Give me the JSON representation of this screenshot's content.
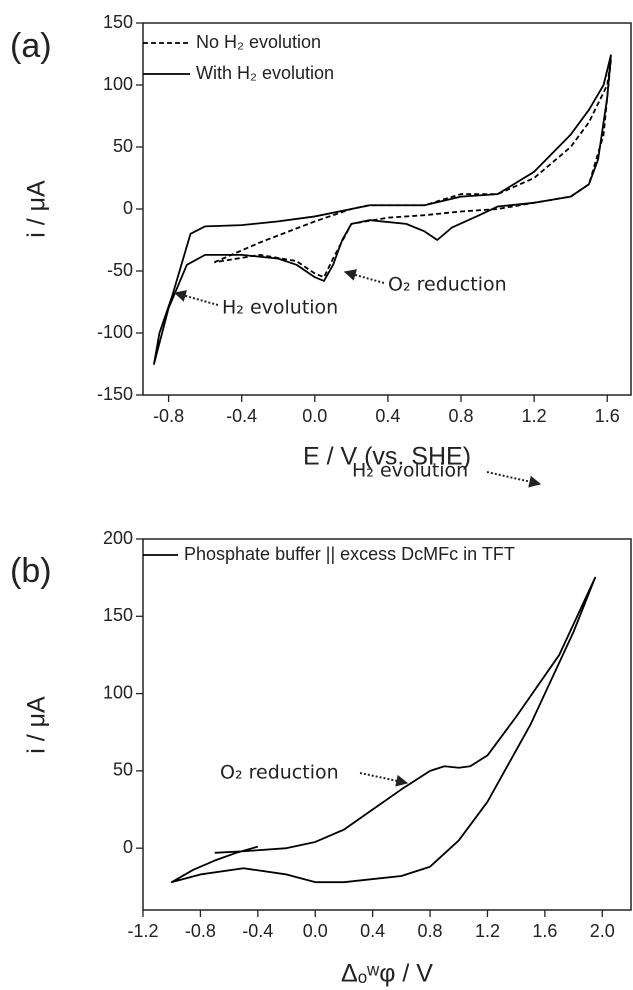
{
  "chart_data": [
    {
      "type": "line",
      "panel_label": "(a)",
      "xlabel": "E / V (vs. SHE)",
      "ylabel": "i / μA",
      "xlim": [
        -0.94,
        1.73
      ],
      "ylim": [
        -150,
        150
      ],
      "xticks": [
        -0.8,
        -0.4,
        {
          "value": 0,
          "label": "0.0"
        },
        0.4,
        0.8,
        1.2,
        1.6
      ],
      "yticks": [
        -150,
        -100,
        -50,
        0,
        50,
        100,
        150
      ],
      "series": [
        {
          "name": "No H₂ evolution",
          "color": "#000000",
          "dash": true,
          "x": [
            -0.55,
            -0.3,
            0.0,
            0.2,
            0.3,
            0.6,
            0.8,
            1.0,
            1.2,
            1.4,
            1.5,
            1.6,
            1.62,
            1.58,
            1.5,
            1.4,
            1.2,
            1.0,
            0.8,
            0.6,
            0.4,
            0.2,
            0.1,
            0.05,
            0.0,
            -0.1,
            -0.3,
            -0.55
          ],
          "values": [
            -43,
            -27,
            -10,
            0,
            3,
            3,
            12,
            12,
            25,
            50,
            70,
            100,
            120,
            60,
            20,
            10,
            5,
            0,
            -2,
            -5,
            -7,
            -12,
            -40,
            -55,
            -52,
            -42,
            -37,
            -43
          ]
        },
        {
          "name": "With H₂ evolution",
          "color": "#000000",
          "dash": false,
          "x": [
            -0.6,
            -0.4,
            -0.2,
            0.0,
            0.2,
            0.3,
            0.6,
            0.8,
            1.0,
            1.2,
            1.4,
            1.5,
            1.58,
            1.62,
            1.6,
            1.55,
            1.5,
            1.4,
            1.2,
            1.0,
            0.9,
            0.75,
            0.67,
            0.6,
            0.5,
            0.3,
            0.2,
            0.15,
            0.1,
            0.05,
            0.0,
            -0.1,
            -0.2,
            -0.4,
            -0.6,
            -0.7,
            -0.8,
            -0.88,
            -0.85,
            -0.78,
            -0.72,
            -0.68,
            -0.6
          ],
          "values": [
            -14,
            -13,
            -10,
            -6,
            0,
            3,
            3,
            10,
            12,
            30,
            60,
            80,
            100,
            124,
            90,
            40,
            20,
            10,
            5,
            2,
            -5,
            -15,
            -25,
            -18,
            -12,
            -9,
            -12,
            -25,
            -45,
            -58,
            -55,
            -45,
            -40,
            -37,
            -37,
            -45,
            -80,
            -125,
            -100,
            -70,
            -40,
            -20,
            -14
          ]
        }
      ],
      "annotations": [
        {
          "text": "O₂ reduction"
        },
        {
          "text": "H₂ evolution"
        }
      ]
    },
    {
      "type": "line",
      "panel_label": "(b)",
      "xlabel": "Δₒʷφ / V",
      "ylabel": "i / μA",
      "xlim": [
        -1.2,
        2.2
      ],
      "ylim": [
        -40,
        200
      ],
      "xticks": [
        -1.2,
        -0.8,
        -0.4,
        {
          "value": 0,
          "label": "0.0"
        },
        0.4,
        0.8,
        1.2,
        1.6,
        {
          "value": 2,
          "label": "2.0"
        }
      ],
      "yticks": [
        0,
        50,
        100,
        150,
        200
      ],
      "series": [
        {
          "name": "Phosphate buffer || excess DcMFc in TFT",
          "color": "#000000",
          "dash": false,
          "x": [
            -0.4,
            -0.55,
            -0.7,
            -0.85,
            -1.0,
            -0.8,
            -0.5,
            -0.2,
            0.0,
            0.2,
            0.6,
            0.8,
            1.0,
            1.2,
            1.5,
            1.8,
            1.95,
            1.7,
            1.4,
            1.2,
            1.08,
            1.0,
            0.9,
            0.8,
            0.6,
            0.4,
            0.2,
            0.0,
            -0.2,
            -0.5,
            -0.7
          ],
          "values": [
            1,
            -3,
            -8,
            -14,
            -22,
            -17,
            -13,
            -17,
            -22,
            -22,
            -18,
            -12,
            5,
            30,
            80,
            140,
            175,
            125,
            85,
            60,
            53,
            52,
            53,
            50,
            38,
            25,
            12,
            4,
            0,
            -2,
            -3
          ]
        }
      ],
      "annotations": [
        {
          "text": "H₂ evolution"
        },
        {
          "text": "O₂ reduction"
        }
      ]
    }
  ]
}
